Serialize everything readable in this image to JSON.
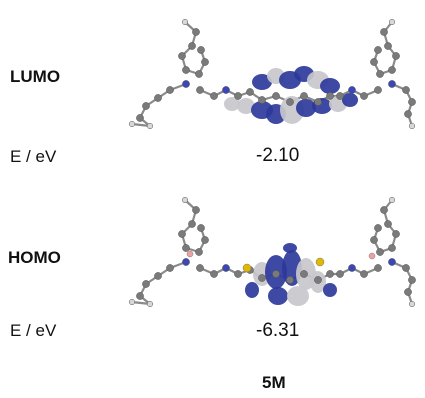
{
  "rows": [
    {
      "orbital_label": "LUMO",
      "energy_label": "E / eV",
      "energy_value": "-2.10"
    },
    {
      "orbital_label": "HOMO",
      "energy_label": "E / eV",
      "energy_value": "-6.31"
    }
  ],
  "molecule_label": "5M",
  "colors": {
    "lobe_positive": "#2c3a9a",
    "lobe_negative": "#c8c8cc",
    "carbon_atom": "#7a7a7a",
    "hydrogen_atom": "#d8d8d8",
    "nitrogen_atom": "#3b46b8",
    "sulfur_atom": "#e0b800",
    "boron_atom": "#f0a0a0",
    "bond": "#8a8a8a"
  }
}
